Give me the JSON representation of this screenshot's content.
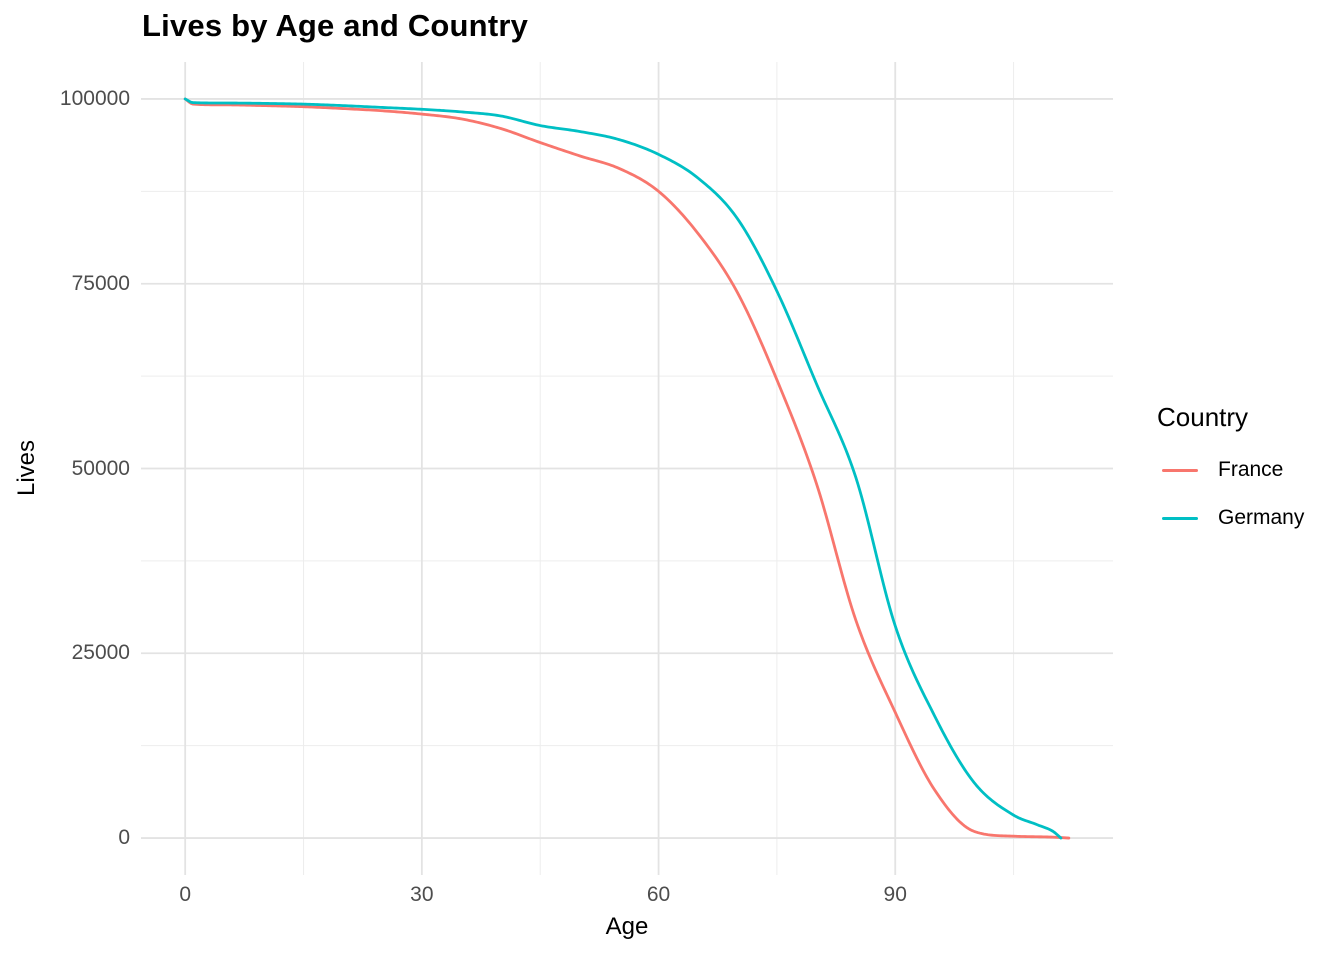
{
  "title": "Lives by Age and Country",
  "colors": {
    "background": "#FFFFFF",
    "grid_major": "#E3E3E3",
    "grid_minor": "#EDEDED",
    "tick_text": "#4D4D4D",
    "title_text": "#000000",
    "france": "#F8766D",
    "germany": "#00BFC4"
  },
  "chart_data": {
    "type": "line",
    "title": "Lives by Age and Country",
    "xlabel": "Age",
    "ylabel": "Lives",
    "legend_title": "Country",
    "legend_position": "right",
    "grid": "major+minor",
    "xlim": [
      -5.6,
      117.6
    ],
    "ylim": [
      -5000,
      105000
    ],
    "x_major_ticks": [
      0,
      30,
      60,
      90
    ],
    "x_minor_ticks": [
      15,
      45,
      75,
      105
    ],
    "y_major_ticks": [
      0,
      25000,
      50000,
      75000,
      100000
    ],
    "y_minor_ticks": [
      12500,
      37500,
      62500,
      87500
    ],
    "series": [
      {
        "name": "France",
        "color": "#F8766D",
        "x": [
          0,
          1,
          5,
          10,
          15,
          20,
          25,
          30,
          35,
          40,
          45,
          50,
          55,
          60,
          65,
          70,
          75,
          80,
          85,
          90,
          95,
          100,
          105,
          110,
          112
        ],
        "y": [
          100000,
          99300,
          99200,
          99100,
          98950,
          98700,
          98400,
          97950,
          97300,
          96000,
          94100,
          92300,
          90600,
          87500,
          81800,
          73800,
          62000,
          48000,
          29500,
          17000,
          6500,
          900,
          250,
          120,
          0
        ]
      },
      {
        "name": "Germany",
        "color": "#00BFC4",
        "x": [
          0,
          1,
          5,
          10,
          15,
          20,
          25,
          30,
          35,
          40,
          45,
          50,
          55,
          60,
          65,
          70,
          75,
          80,
          85,
          90,
          95,
          100,
          105,
          108,
          110,
          111
        ],
        "y": [
          100000,
          99500,
          99450,
          99400,
          99300,
          99100,
          98850,
          98600,
          98250,
          97700,
          96400,
          95600,
          94500,
          92500,
          89300,
          83800,
          74000,
          61500,
          48800,
          28700,
          16500,
          7500,
          3100,
          1800,
          900,
          0
        ]
      }
    ]
  }
}
